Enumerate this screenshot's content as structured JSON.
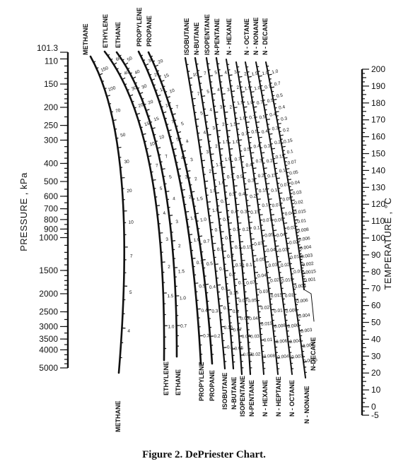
{
  "caption": "Figure 2. DePriester Chart.",
  "chart_data": {
    "type": "nomogram",
    "title": "",
    "left_axis": {
      "label": "PRESSURE , kPa",
      "scale": "log",
      "range": [
        101.3,
        5000
      ],
      "ticks": [
        101.3,
        110,
        150,
        200,
        250,
        300,
        400,
        500,
        600,
        700,
        800,
        900,
        1000,
        1500,
        2000,
        2500,
        3000,
        3500,
        4000,
        5000
      ],
      "tick_labels": [
        "101.3",
        "110",
        "150",
        "200",
        "250",
        "300",
        "400",
        "500",
        "600",
        "700",
        "800",
        "900",
        "1000",
        "1500",
        "2000",
        "2500",
        "3000",
        "3500",
        "4000",
        "5000"
      ]
    },
    "right_axis": {
      "label": "TEMPERATURE , °C",
      "scale": "linear",
      "range": [
        -5,
        200
      ],
      "ticks": [
        -5,
        0,
        10,
        20,
        30,
        40,
        50,
        60,
        70,
        80,
        90,
        100,
        110,
        120,
        130,
        140,
        150,
        160,
        170,
        180,
        190,
        200
      ],
      "tick_labels": [
        "-5",
        "0",
        "10",
        "20",
        "30",
        "40",
        "50",
        "60",
        "70",
        "80",
        "90",
        "100",
        "110",
        "120",
        "130",
        "140",
        "150",
        "160",
        "170",
        "180",
        "190",
        "200"
      ]
    },
    "series": [
      {
        "name": "METHANE",
        "top_label": "METHANE",
        "bottom_label": "METHANE",
        "k_range": [
          160,
          3
        ],
        "k_labels": [
          "150",
          "100",
          "70",
          "50",
          "30",
          "20",
          "10",
          "7",
          "5",
          "4"
        ]
      },
      {
        "name": "ETHYLENE",
        "top_label": "ETHYLENE",
        "bottom_label": "ETHYLENE",
        "k_range": [
          80,
          0.8
        ],
        "k_labels": [
          "60",
          "40",
          "30",
          "20",
          "15",
          "10",
          "7",
          "5",
          "4",
          "3",
          "2",
          "1.5",
          "1.0"
        ]
      },
      {
        "name": "ETHANE",
        "top_label": "ETHANE",
        "bottom_label": "ETHANE",
        "k_range": [
          60,
          0.5
        ],
        "k_labels": [
          "50",
          "40",
          "30",
          "20",
          "15",
          "10",
          "7",
          "5",
          "4",
          "3",
          "2",
          "1.5",
          "1.0",
          "0.7"
        ]
      },
      {
        "name": "PROPYLENE",
        "top_label": "PROPYLENE",
        "bottom_label": "PROPYLENE",
        "k_range": [
          40,
          0.2
        ],
        "k_labels": [
          "30",
          "20",
          "15",
          "10",
          "7",
          "5",
          "4",
          "3",
          "2",
          "1.5",
          "1.0",
          "0.7",
          "0.5",
          "0.4",
          "0.3"
        ]
      },
      {
        "name": "PROPANE",
        "top_label": "PROPANE",
        "bottom_label": "PROPANE",
        "k_range": [
          30,
          0.15
        ],
        "k_labels": [
          "20",
          "15",
          "10",
          "7",
          "5",
          "4",
          "3",
          "2",
          "1.5",
          "1.0",
          "0.7",
          "0.5",
          "0.4",
          "0.3",
          "0.2"
        ]
      },
      {
        "name": "ISOBUTANE",
        "top_label": "ISOBUTANE",
        "bottom_label": "ISOBUTANE",
        "k_range": [
          15,
          0.06
        ],
        "k_labels": [
          "10",
          "7",
          "5",
          "4",
          "3",
          "2",
          "1.5",
          "1.0",
          "0.7",
          "0.5",
          "0.4",
          "0.3",
          "0.2",
          "0.15",
          "0.1"
        ]
      },
      {
        "name": "N-BUTANE",
        "top_label": "N-BUTANE",
        "bottom_label": "N-BUTANE",
        "k_range": [
          10,
          0.04
        ],
        "k_labels": [
          "7",
          "5",
          "4",
          "3",
          "2",
          "1.5",
          "1.0",
          "0.7",
          "0.5",
          "0.4",
          "0.3",
          "0.2",
          "0.15",
          "0.1",
          "0.07",
          "0.05"
        ]
      },
      {
        "name": "ISOPENTANE",
        "top_label": "ISOPENTANE",
        "bottom_label": "ISOPENTANE",
        "k_range": [
          8,
          0.02
        ],
        "k_labels": [
          "5",
          "4",
          "3",
          "2",
          "1.5",
          "1.0",
          "0.7",
          "0.5",
          "0.4",
          "0.3",
          "0.2",
          "0.15",
          "0.1",
          "0.07",
          "0.05",
          "0.04",
          "0.03"
        ]
      },
      {
        "name": "N-PENTANE",
        "top_label": "N-PENTANE",
        "bottom_label": "N-PENTANE",
        "k_range": [
          6,
          0.015
        ],
        "k_labels": [
          "4",
          "3",
          "2",
          "1.5",
          "1.0",
          "0.7",
          "0.5",
          "0.4",
          "0.3",
          "0.2",
          "0.15",
          "0.1",
          "0.07",
          "0.05",
          "0.04",
          "0.03",
          "0.02"
        ]
      },
      {
        "name": "N-HEXANE",
        "top_label": "N - HEXANE",
        "bottom_label": "N - HEXANE",
        "k_range": [
          4,
          0.006
        ],
        "k_labels": [
          "3",
          "2",
          "1.5",
          "1.0",
          "0.7",
          "0.5",
          "0.4",
          "0.3",
          "0.2",
          "0.15",
          "0.1",
          "0.07",
          "0.05",
          "0.04",
          "0.03",
          "0.02",
          "0.015",
          "0.01",
          "0.008"
        ]
      },
      {
        "name": "N-HEPTANE",
        "top_label": "",
        "bottom_label": "N - HEPTANE",
        "k_range": [
          3,
          0.003
        ],
        "k_labels": [
          "2",
          "1.5",
          "1.0",
          "0.7",
          "0.5",
          "0.4",
          "0.3",
          "0.2",
          "0.15",
          "0.1",
          "0.07",
          "0.05",
          "0.04",
          "0.03",
          "0.02",
          "0.015",
          "0.01",
          "0.008",
          "0.006",
          "0.004"
        ]
      },
      {
        "name": "N-OCTANE",
        "top_label": "N - OCTANE",
        "bottom_label": "N - OCTANE",
        "k_range": [
          2,
          0.002
        ],
        "k_labels": [
          "1.5",
          "1.0",
          "0.7",
          "0.5",
          "0.4",
          "0.3",
          "0.2",
          "0.15",
          "0.1",
          "0.07",
          "0.05",
          "0.04",
          "0.03",
          "0.02",
          "0.015",
          "0.01",
          "0.008",
          "0.006",
          "0.004",
          "0.003"
        ]
      },
      {
        "name": "N-NONANE",
        "top_label": "N - NONANE",
        "bottom_label": "N - NONANE",
        "k_range": [
          1.5,
          0.001
        ],
        "k_labels": [
          "1.0",
          "0.7",
          "0.5",
          "0.4",
          "0.3",
          "0.2",
          "0.15",
          "0.1",
          "0.07",
          "0.05",
          "0.04",
          "0.03",
          "0.02",
          "0.015",
          "0.01",
          "0.008",
          "0.006",
          "0.004",
          "0.003",
          "0.002",
          "0.0015"
        ]
      },
      {
        "name": "N-DECANE",
        "top_label": "N - DECANE",
        "bottom_label": "N-DECANE",
        "k_range": [
          1.5,
          0.001
        ],
        "k_labels": [
          "1.0",
          "0.7",
          "0.5",
          "0.4",
          "0.3",
          "0.2",
          "0.15",
          "0.1",
          "0.07",
          "0.05",
          "0.04",
          "0.03",
          "0.02",
          "0.015",
          "0.01",
          "0.008",
          "0.006",
          "0.004",
          "0.003",
          "0.002",
          "0.0015",
          "0.001"
        ]
      }
    ]
  }
}
